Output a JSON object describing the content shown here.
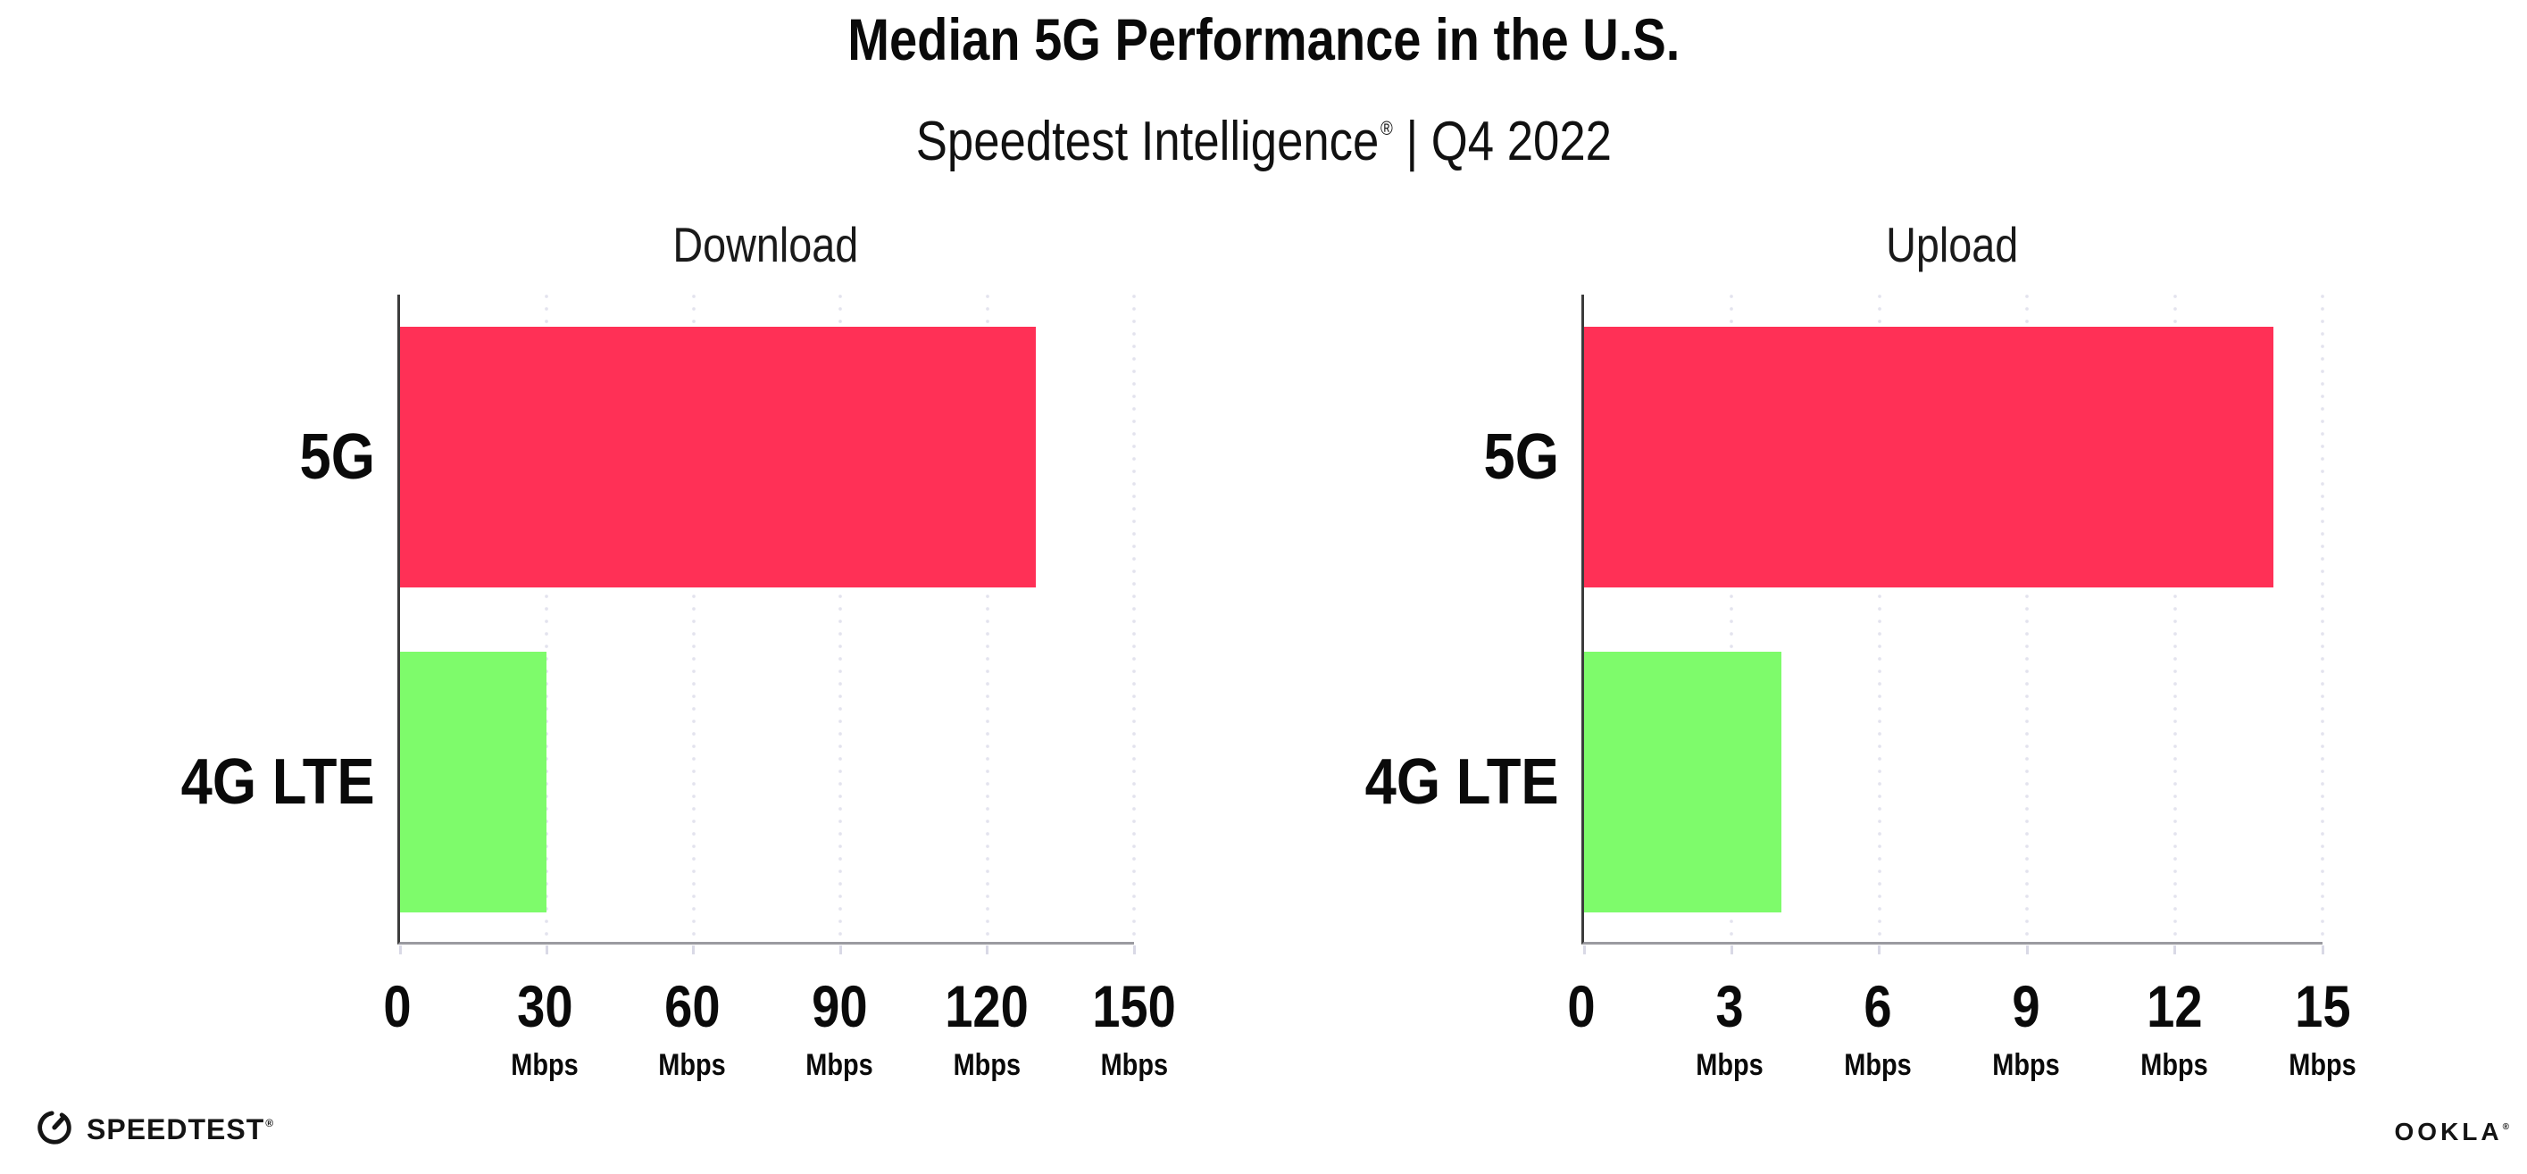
{
  "header": {
    "title": "Median 5G Performance in the U.S.",
    "subtitle": {
      "product": "Speedtest Intelligence",
      "reg": "®",
      "rest": " | Q4 2022"
    }
  },
  "colors": {
    "bar_5g": "#ff3056",
    "bar_4g_lte": "#7efb6b",
    "gridline": "#e3e3ee",
    "y_axis": "#3c3c3c",
    "x_axis": "#9a9aa0",
    "text": "#0a0a0a"
  },
  "chart_data": [
    {
      "type": "bar",
      "orientation": "horizontal",
      "title": "Download",
      "categories": [
        "5G",
        "4G LTE"
      ],
      "values": [
        130,
        30
      ],
      "unit": "Mbps",
      "xlim": [
        0,
        150
      ],
      "xticks": [
        0,
        30,
        60,
        90,
        120,
        150
      ],
      "bar_colors": [
        "#ff3056",
        "#7efb6b"
      ],
      "grid": "dotted-vertical",
      "legend": "none"
    },
    {
      "type": "bar",
      "orientation": "horizontal",
      "title": "Upload",
      "categories": [
        "5G",
        "4G LTE"
      ],
      "values": [
        14,
        4
      ],
      "unit": "Mbps",
      "xlim": [
        0,
        15
      ],
      "xticks": [
        0,
        3,
        6,
        9,
        12,
        15
      ],
      "bar_colors": [
        "#ff3056",
        "#7efb6b"
      ],
      "grid": "dotted-vertical",
      "legend": "none"
    }
  ],
  "footer": {
    "speedtest": {
      "label": "SPEEDTEST",
      "reg": "®",
      "icon": "gauge-icon"
    },
    "ookla": {
      "label": "OOKLA",
      "reg": "®"
    }
  }
}
